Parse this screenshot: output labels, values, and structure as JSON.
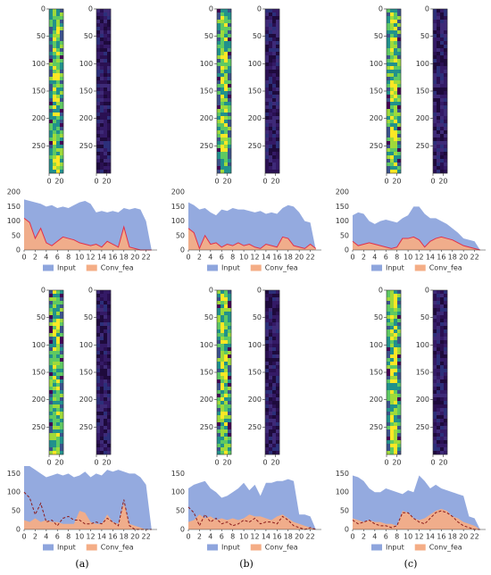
{
  "heatmaps": [
    {
      "colormap": "viridis",
      "xlim": [
        0,
        28
      ],
      "ylim": [
        0,
        300
      ],
      "xticks": [
        0,
        20
      ],
      "yticks": [
        0,
        50,
        100,
        150,
        200,
        250
      ]
    },
    {
      "colormap": "dark",
      "xlim": [
        0,
        28
      ],
      "ylim": [
        0,
        300
      ],
      "xticks": [
        0,
        20
      ],
      "yticks": [
        0,
        50,
        100,
        150,
        200,
        250
      ]
    },
    {
      "colormap": "viridis",
      "xlim": [
        0,
        28
      ],
      "ylim": [
        0,
        300
      ],
      "xticks": [
        0,
        20
      ],
      "yticks": [
        0,
        50,
        100,
        150,
        200,
        250
      ]
    },
    {
      "colormap": "dark",
      "xlim": [
        0,
        28
      ],
      "ylim": [
        0,
        300
      ],
      "xticks": [
        0,
        20
      ],
      "yticks": [
        0,
        50,
        100,
        150,
        200,
        250
      ]
    },
    {
      "colormap": "viridis",
      "xlim": [
        0,
        28
      ],
      "ylim": [
        0,
        300
      ],
      "xticks": [
        0,
        20
      ],
      "yticks": [
        0,
        50,
        100,
        150,
        200,
        250
      ]
    },
    {
      "colormap": "dark",
      "xlim": [
        0,
        28
      ],
      "ylim": [
        0,
        300
      ],
      "xticks": [
        0,
        20
      ],
      "yticks": [
        0,
        50,
        100,
        150,
        200,
        250
      ]
    },
    {
      "colormap": "viridis",
      "xlim": [
        0,
        28
      ],
      "ylim": [
        0,
        300
      ],
      "xticks": [
        0,
        20
      ],
      "yticks": [
        0,
        50,
        100,
        150,
        200,
        250
      ]
    },
    {
      "colormap": "dark",
      "xlim": [
        0,
        28
      ],
      "ylim": [
        0,
        300
      ],
      "xticks": [
        0,
        20
      ],
      "yticks": [
        0,
        50,
        100,
        150,
        200,
        250
      ]
    },
    {
      "colormap": "viridis",
      "xlim": [
        0,
        28
      ],
      "ylim": [
        0,
        300
      ],
      "xticks": [
        0,
        20
      ],
      "yticks": [
        0,
        50,
        100,
        150,
        200,
        250
      ]
    },
    {
      "colormap": "dark",
      "xlim": [
        0,
        28
      ],
      "ylim": [
        0,
        300
      ],
      "xticks": [
        0,
        20
      ],
      "yticks": [
        0,
        50,
        100,
        150,
        200,
        250
      ]
    },
    {
      "colormap": "viridis",
      "xlim": [
        0,
        28
      ],
      "ylim": [
        0,
        300
      ],
      "xticks": [
        0,
        20
      ],
      "yticks": [
        0,
        50,
        100,
        150,
        200,
        250
      ]
    },
    {
      "colormap": "dark",
      "xlim": [
        0,
        28
      ],
      "ylim": [
        0,
        300
      ],
      "xticks": [
        0,
        20
      ],
      "yticks": [
        0,
        50,
        100,
        150,
        200,
        250
      ]
    }
  ],
  "chart_data": [
    {
      "type": "area",
      "legend": "bottom",
      "x": [
        0,
        1,
        2,
        3,
        4,
        5,
        6,
        7,
        8,
        9,
        10,
        11,
        12,
        13,
        14,
        15,
        16,
        17,
        18,
        19,
        20,
        21,
        22,
        23
      ],
      "xlim": [
        0,
        24
      ],
      "xticks": [
        0,
        2,
        4,
        6,
        8,
        10,
        12,
        14,
        16,
        18,
        20,
        22
      ],
      "ylim": [
        0,
        210
      ],
      "yticks": [
        0,
        50,
        100,
        150,
        200
      ],
      "series": [
        {
          "name": "Input",
          "color": "#8ea5dd",
          "values": [
            175,
            170,
            165,
            160,
            150,
            155,
            145,
            150,
            145,
            155,
            165,
            170,
            160,
            130,
            135,
            130,
            135,
            130,
            145,
            140,
            145,
            140,
            100,
            0
          ]
        },
        {
          "name": "Conv_fea",
          "color": "#f4ad86",
          "line": "#e2304a",
          "values": [
            110,
            95,
            40,
            75,
            25,
            15,
            30,
            45,
            40,
            35,
            25,
            20,
            15,
            20,
            10,
            30,
            20,
            10,
            80,
            10,
            5,
            0,
            0,
            0
          ]
        }
      ]
    },
    {
      "type": "area",
      "legend": "bottom",
      "x": [
        0,
        1,
        2,
        3,
        4,
        5,
        6,
        7,
        8,
        9,
        10,
        11,
        12,
        13,
        14,
        15,
        16,
        17,
        18,
        19,
        20,
        21,
        22,
        23
      ],
      "xlim": [
        0,
        24
      ],
      "xticks": [
        0,
        2,
        4,
        6,
        8,
        10,
        12,
        14,
        16,
        18,
        20,
        22
      ],
      "ylim": [
        0,
        210
      ],
      "yticks": [
        0,
        50,
        100,
        150,
        200
      ],
      "series": [
        {
          "name": "Input",
          "color": "#8ea5dd",
          "values": [
            165,
            155,
            140,
            145,
            130,
            120,
            140,
            135,
            145,
            140,
            140,
            135,
            130,
            135,
            125,
            130,
            125,
            145,
            155,
            150,
            130,
            100,
            95,
            0
          ]
        },
        {
          "name": "Conv_fea",
          "color": "#f4ad86",
          "line": "#e2304a",
          "values": [
            75,
            60,
            5,
            50,
            20,
            25,
            10,
            20,
            15,
            25,
            15,
            20,
            10,
            5,
            20,
            15,
            10,
            45,
            40,
            15,
            10,
            5,
            20,
            5
          ]
        }
      ]
    },
    {
      "type": "area",
      "legend": "bottom",
      "x": [
        0,
        1,
        2,
        3,
        4,
        5,
        6,
        7,
        8,
        9,
        10,
        11,
        12,
        13,
        14,
        15,
        16,
        17,
        18,
        19,
        20,
        21,
        22,
        23
      ],
      "xlim": [
        0,
        24
      ],
      "xticks": [
        0,
        2,
        4,
        6,
        8,
        10,
        12,
        14,
        16,
        18,
        20,
        22
      ],
      "ylim": [
        0,
        210
      ],
      "yticks": [
        0,
        50,
        100,
        150,
        200
      ],
      "series": [
        {
          "name": "Input",
          "color": "#8ea5dd",
          "values": [
            120,
            130,
            125,
            100,
            90,
            100,
            105,
            100,
            95,
            110,
            120,
            150,
            150,
            125,
            110,
            110,
            100,
            90,
            75,
            60,
            40,
            35,
            30,
            0
          ]
        },
        {
          "name": "Conv_fea",
          "color": "#f4ad86",
          "line": "#e2304a",
          "values": [
            30,
            15,
            20,
            25,
            20,
            15,
            10,
            5,
            10,
            40,
            40,
            45,
            35,
            10,
            30,
            40,
            45,
            40,
            35,
            25,
            15,
            10,
            5,
            0
          ]
        }
      ]
    },
    {
      "type": "area",
      "legend": "bottom",
      "x": [
        0,
        1,
        2,
        3,
        4,
        5,
        6,
        7,
        8,
        9,
        10,
        11,
        12,
        13,
        14,
        15,
        16,
        17,
        18,
        19,
        20,
        21,
        22,
        23
      ],
      "xlim": [
        0,
        24
      ],
      "xticks": [
        0,
        2,
        4,
        6,
        8,
        10,
        12,
        14,
        16,
        18,
        20,
        22
      ],
      "ylim": [
        0,
        170
      ],
      "yticks": [
        0,
        50,
        100,
        150
      ],
      "series": [
        {
          "name": "Input",
          "color": "#8ea5dd",
          "values": [
            170,
            170,
            160,
            150,
            140,
            145,
            150,
            145,
            150,
            140,
            145,
            155,
            140,
            150,
            145,
            160,
            155,
            160,
            155,
            150,
            150,
            140,
            120,
            0
          ]
        },
        {
          "name": "Conv_fea",
          "color": "#f4ad86",
          "values": [
            25,
            20,
            30,
            20,
            25,
            20,
            20,
            15,
            15,
            15,
            50,
            45,
            20,
            15,
            15,
            40,
            20,
            15,
            70,
            15,
            10,
            5,
            0,
            0
          ]
        },
        {
          "color": "#8b1a1a",
          "dash": true,
          "values": [
            100,
            85,
            40,
            70,
            20,
            25,
            10,
            30,
            35,
            25,
            25,
            15,
            15,
            20,
            15,
            30,
            20,
            10,
            80,
            10,
            0,
            0,
            0,
            0
          ]
        }
      ]
    },
    {
      "type": "area",
      "legend": "bottom",
      "x": [
        0,
        1,
        2,
        3,
        4,
        5,
        6,
        7,
        8,
        9,
        10,
        11,
        12,
        13,
        14,
        15,
        16,
        17,
        18,
        19,
        20,
        21,
        22,
        23
      ],
      "xlim": [
        0,
        24
      ],
      "xticks": [
        0,
        2,
        4,
        6,
        8,
        10,
        12,
        14,
        16,
        18,
        20,
        22
      ],
      "ylim": [
        0,
        170
      ],
      "yticks": [
        0,
        50,
        100,
        150
      ],
      "series": [
        {
          "name": "Input",
          "color": "#8ea5dd",
          "values": [
            110,
            120,
            125,
            130,
            110,
            100,
            85,
            90,
            100,
            110,
            125,
            105,
            120,
            90,
            125,
            125,
            130,
            130,
            135,
            130,
            40,
            40,
            35,
            0
          ]
        },
        {
          "name": "Conv_fea",
          "color": "#f4ad86",
          "values": [
            20,
            25,
            40,
            30,
            35,
            25,
            30,
            25,
            30,
            25,
            30,
            40,
            35,
            35,
            30,
            25,
            35,
            40,
            30,
            20,
            15,
            10,
            5,
            0
          ]
        },
        {
          "color": "#8b1a1a",
          "dash": true,
          "values": [
            60,
            45,
            10,
            40,
            20,
            30,
            15,
            20,
            10,
            15,
            25,
            20,
            30,
            15,
            20,
            20,
            15,
            35,
            25,
            10,
            5,
            0,
            5,
            0
          ]
        }
      ]
    },
    {
      "type": "area",
      "legend": "bottom",
      "x": [
        0,
        1,
        2,
        3,
        4,
        5,
        6,
        7,
        8,
        9,
        10,
        11,
        12,
        13,
        14,
        15,
        16,
        17,
        18,
        19,
        20,
        21,
        22,
        23
      ],
      "xlim": [
        0,
        24
      ],
      "xticks": [
        0,
        2,
        4,
        6,
        8,
        10,
        12,
        14,
        16,
        18,
        20,
        22
      ],
      "ylim": [
        0,
        170
      ],
      "yticks": [
        0,
        50,
        100,
        150
      ],
      "series": [
        {
          "name": "Input",
          "color": "#8ea5dd",
          "values": [
            145,
            140,
            130,
            110,
            100,
            100,
            110,
            105,
            100,
            95,
            105,
            100,
            145,
            130,
            110,
            120,
            110,
            105,
            100,
            95,
            90,
            35,
            30,
            0
          ]
        },
        {
          "name": "Conv_fea",
          "color": "#f4ad86",
          "values": [
            30,
            25,
            20,
            25,
            20,
            20,
            15,
            15,
            10,
            50,
            45,
            30,
            25,
            30,
            40,
            50,
            55,
            50,
            35,
            30,
            20,
            15,
            10,
            0
          ]
        },
        {
          "color": "#8b1a1a",
          "dash": true,
          "values": [
            25,
            15,
            20,
            25,
            15,
            10,
            10,
            5,
            10,
            45,
            45,
            30,
            20,
            15,
            30,
            45,
            50,
            45,
            35,
            20,
            10,
            5,
            0,
            0
          ]
        }
      ]
    }
  ],
  "captions": [
    "(a)",
    "(b)",
    "(c)"
  ]
}
